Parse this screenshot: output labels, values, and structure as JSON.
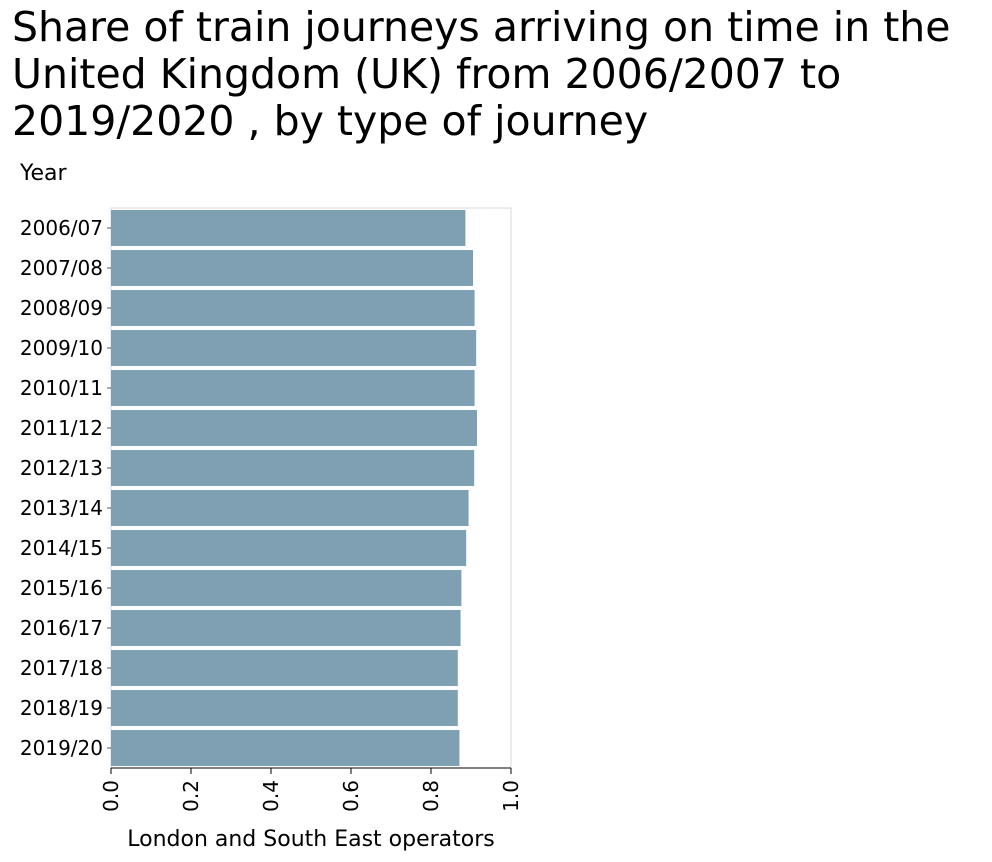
{
  "chart_data": {
    "type": "bar",
    "orientation": "horizontal",
    "title": "Share of train journeys arriving on time in the United Kingdom (UK) from 2006/2007 to 2019/2020 , by type of journey",
    "ylabel": "Year",
    "xlabel": "London and South East operators",
    "categories": [
      "2006/07",
      "2007/08",
      "2008/09",
      "2009/10",
      "2010/11",
      "2011/12",
      "2012/13",
      "2013/14",
      "2014/15",
      "2015/16",
      "2016/17",
      "2017/18",
      "2018/19",
      "2019/20"
    ],
    "values": [
      0.886,
      0.905,
      0.909,
      0.913,
      0.909,
      0.915,
      0.908,
      0.894,
      0.888,
      0.876,
      0.874,
      0.867,
      0.867,
      0.871
    ],
    "xlim": [
      0,
      1.0
    ],
    "xticks": [
      "0.0",
      "0.2",
      "0.4",
      "0.6",
      "0.8",
      "1.0"
    ],
    "bar_color": "#7f9fb2",
    "grid": false
  }
}
